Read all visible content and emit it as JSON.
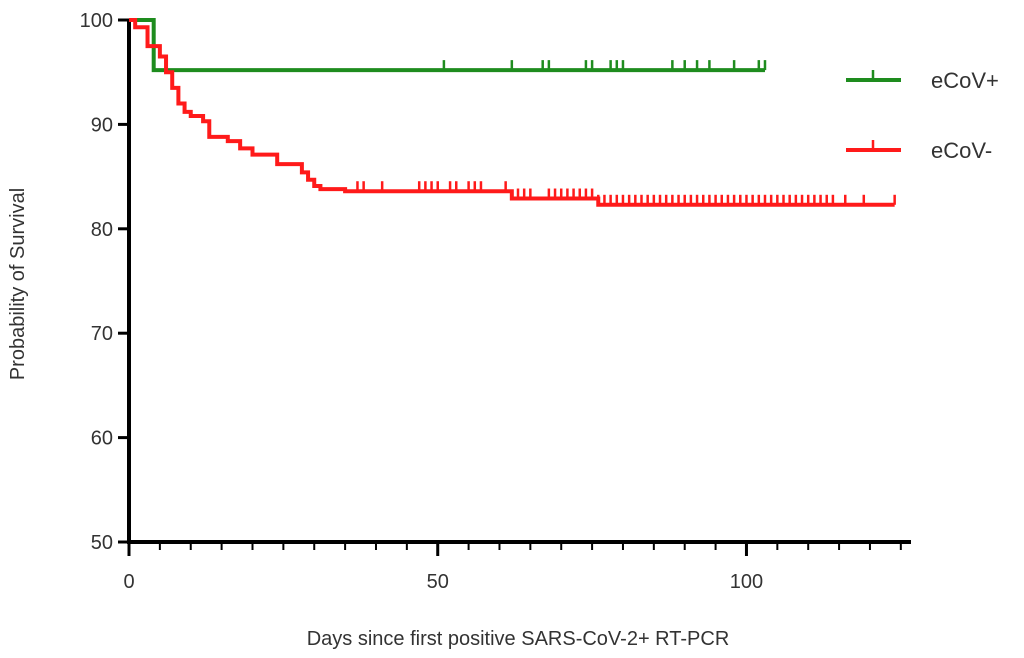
{
  "chart_data": {
    "type": "line",
    "subtype": "kaplan-meier step plot",
    "title": "",
    "xlabel": "Days since first positive SARS-CoV-2+ RT-PCR",
    "ylabel": "Probability of Survival",
    "xlim": [
      0,
      126
    ],
    "ylim": [
      50,
      100
    ],
    "x_ticks": [
      0,
      50,
      100
    ],
    "x_tick_labels": [
      "0",
      "50",
      "100"
    ],
    "x_minor_tick_step": 5,
    "y_ticks": [
      50,
      60,
      70,
      80,
      90,
      100
    ],
    "y_tick_labels": [
      "50",
      "60",
      "70",
      "80",
      "90",
      "100"
    ],
    "grid": false,
    "legend_position": "right",
    "series": [
      {
        "name": "eCoV+",
        "color": "#1e8c1e",
        "steps": [
          [
            0,
            100
          ],
          [
            4,
            95.2
          ],
          [
            103,
            95.2
          ]
        ],
        "censor_marks": [
          51,
          62,
          67,
          68,
          74,
          75,
          78,
          79,
          80,
          88,
          90,
          92,
          94,
          98,
          102,
          103
        ]
      },
      {
        "name": "eCoV-",
        "color": "#ff1a1a",
        "steps": [
          [
            0,
            100
          ],
          [
            1,
            99.3
          ],
          [
            3,
            97.5
          ],
          [
            5,
            96.5
          ],
          [
            6,
            95
          ],
          [
            7,
            93.5
          ],
          [
            8,
            92
          ],
          [
            9,
            91.2
          ],
          [
            10,
            90.8
          ],
          [
            12,
            90.3
          ],
          [
            13,
            88.8
          ],
          [
            16,
            88.4
          ],
          [
            18,
            87.7
          ],
          [
            20,
            87.1
          ],
          [
            24,
            86.2
          ],
          [
            28,
            85.4
          ],
          [
            29,
            84.7
          ],
          [
            30,
            84.1
          ],
          [
            31,
            83.8
          ],
          [
            35,
            83.6
          ],
          [
            62,
            82.9
          ],
          [
            76,
            82.3
          ],
          [
            124,
            82.3
          ]
        ],
        "censor_marks": [
          37,
          38,
          41,
          47,
          48,
          49,
          50,
          52,
          53,
          55,
          56,
          57,
          61,
          63,
          64,
          65,
          68,
          69,
          70,
          71,
          72,
          73,
          74,
          75,
          76,
          77,
          78,
          79,
          80,
          81,
          82,
          83,
          84,
          85,
          86,
          87,
          88,
          89,
          90,
          91,
          92,
          93,
          94,
          95,
          96,
          97,
          98,
          99,
          100,
          101,
          102,
          103,
          104,
          105,
          106,
          107,
          108,
          109,
          110,
          111,
          112,
          113,
          114,
          116,
          119,
          124
        ]
      }
    ]
  }
}
